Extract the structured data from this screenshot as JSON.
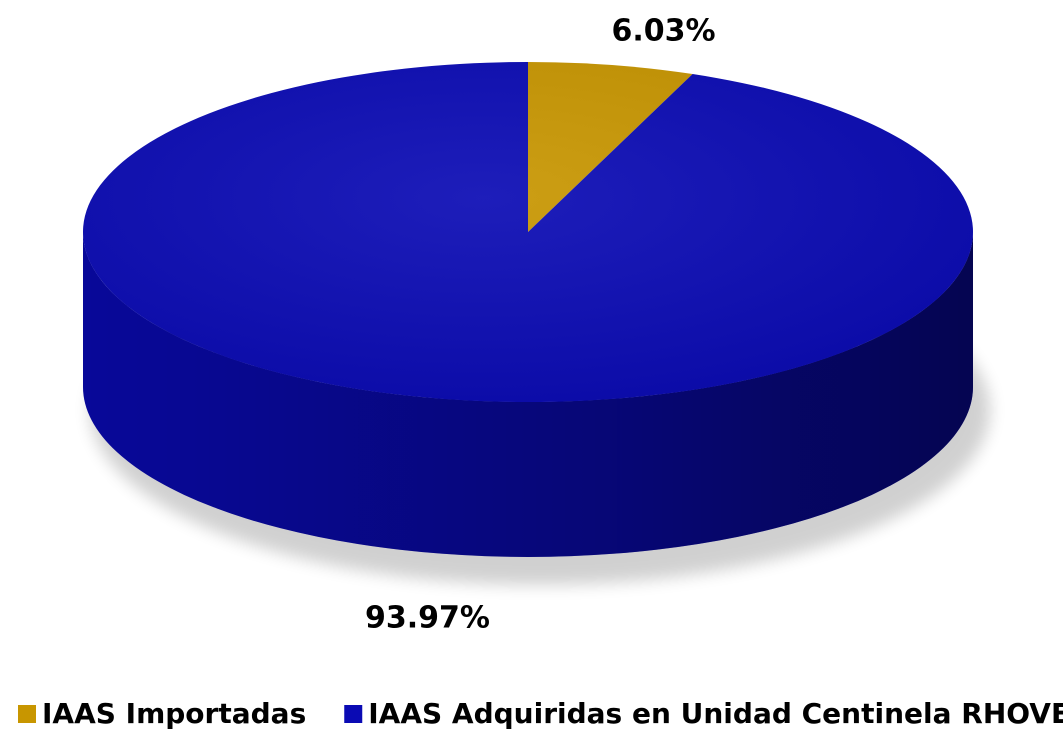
{
  "chart_data": {
    "type": "pie",
    "categories": [
      "IAAS Importadas",
      "IAAS Adquiridas en Unidad Centinela RHOVE"
    ],
    "values": [
      6.03,
      93.97
    ],
    "value_labels": [
      "6.03%",
      "93.97%"
    ],
    "colors": [
      "#c89600",
      "#0a0ab4"
    ]
  }
}
